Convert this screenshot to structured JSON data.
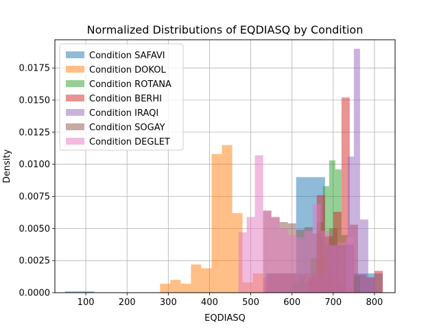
{
  "chart_data": {
    "type": "histogram",
    "title": "Normalized Distributions of EQDIASQ by Condition",
    "xlabel": "EQDIASQ",
    "ylabel": "Density",
    "xlim": [
      25,
      850
    ],
    "ylim": [
      0,
      0.0197
    ],
    "xticks": [
      100,
      200,
      300,
      400,
      500,
      600,
      700,
      800
    ],
    "yticks": [
      0.0,
      0.0025,
      0.005,
      0.0075,
      0.01,
      0.0125,
      0.015,
      0.0175
    ],
    "ytick_labels": [
      "0.0000",
      "0.0025",
      "0.0050",
      "0.0075",
      "0.0100",
      "0.0125",
      "0.0150",
      "0.0175"
    ],
    "grid": true,
    "legend_position": "upper-left",
    "series": [
      {
        "name": "Condition SAFAVI",
        "color": "#1f77b4",
        "bin_edges": [
          50,
          120,
          190,
          260,
          330,
          400,
          470,
          540,
          610,
          680,
          750,
          820
        ],
        "values": [
          0.0001,
          0,
          0,
          0,
          0,
          0,
          0,
          0.0015,
          0.009,
          0.0037,
          0.0015
        ]
      },
      {
        "name": "Condition DOKOL",
        "color": "#ff7f0e",
        "bin_edges": [
          280,
          305,
          330,
          355,
          380,
          405,
          430,
          455,
          480,
          505,
          530,
          555,
          580,
          605,
          630,
          655,
          680,
          705,
          730,
          755
        ],
        "values": [
          0.0007,
          0.001,
          0.0007,
          0.0022,
          0.0019,
          0.0108,
          0.0115,
          0.0062,
          0.0008,
          0.0015,
          0.0012,
          0.0015,
          0.0015,
          0.001,
          0.0015,
          0.0025,
          0.0012,
          0.0007,
          0.0005
        ]
      },
      {
        "name": "Condition ROTANA",
        "color": "#2ca02c",
        "bin_edges": [
          600,
          615,
          630,
          645,
          660,
          675,
          690,
          705,
          720,
          735,
          750,
          765
        ],
        "values": [
          0.0008,
          0.0013,
          0.0008,
          0.0027,
          0.0055,
          0.0083,
          0.0103,
          0.0096,
          0.0045,
          0.0038,
          0.0013
        ]
      },
      {
        "name": "Condition BERHI",
        "color": "#d62728",
        "bin_edges": [
          640,
          660,
          680,
          700,
          720,
          740,
          760,
          780,
          800,
          820
        ],
        "values": [
          0.0012,
          0.0076,
          0.0044,
          0.0063,
          0.0152,
          0.0053,
          0.0014,
          0.0012,
          0.0017
        ]
      },
      {
        "name": "Condition IRAQI",
        "color": "#9467bd",
        "bin_edges": [
          535,
          560,
          585,
          610,
          635,
          660,
          685,
          710,
          735,
          750,
          765,
          785,
          800
        ],
        "values": [
          0.0015,
          0.0015,
          0.0015,
          0.0015,
          0.0015,
          0.0015,
          0.0037,
          0.0037,
          0.0106,
          0.019,
          0.0057,
          0.0012
        ]
      },
      {
        "name": "Condition SOGAY",
        "color": "#8c564b",
        "bin_edges": [
          530,
          550,
          570,
          590,
          610,
          630,
          650,
          670,
          690,
          710,
          730
        ],
        "values": [
          0.0064,
          0.0059,
          0.0055,
          0.0054,
          0.0049,
          0.0051,
          0.0046,
          0.0043,
          0.005,
          0.0037
        ]
      },
      {
        "name": "Condition DEGLET",
        "color": "#e377c2",
        "bin_edges": [
          470,
          490,
          510,
          530,
          550,
          570,
          590,
          610,
          630,
          650,
          670,
          690,
          710,
          730,
          750
        ],
        "values": [
          0.0047,
          0.0059,
          0.0107,
          0.0063,
          0.0058,
          0.005,
          0.0045,
          0.0043,
          0.0048,
          0.0069,
          0.0048,
          0.0037,
          0.0039,
          0.0043
        ]
      }
    ]
  }
}
